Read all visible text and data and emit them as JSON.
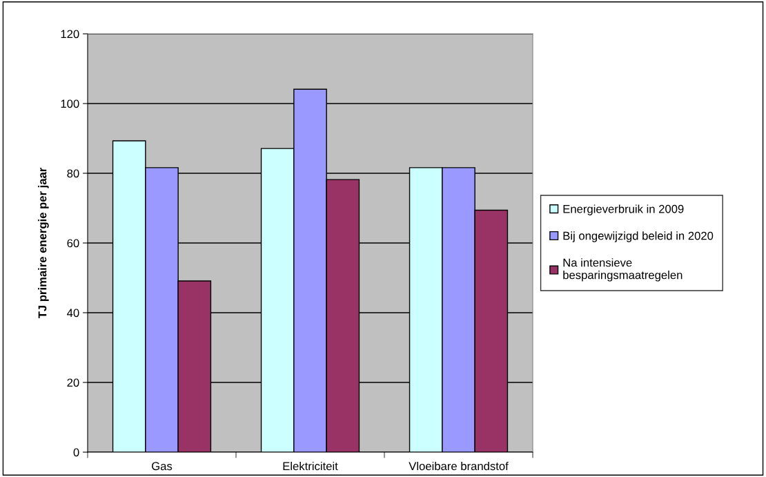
{
  "chart_data": {
    "type": "bar",
    "ylabel": "TJ primaire energie per jaar",
    "categories": [
      "Gas",
      "Elektriciteit",
      "Vloeibare brandstof"
    ],
    "series": [
      {
        "name": "Energieverbruik in 2009",
        "color": "#ccffff",
        "values": [
          89.3,
          87.1,
          81.6
        ]
      },
      {
        "name": "Bij ongewijzigd beleid in 2020",
        "color": "#9999ff",
        "values": [
          81.6,
          104.1,
          81.6
        ]
      },
      {
        "name": "Na intensieve\nbesparingsmaatregelen",
        "color": "#993366",
        "values": [
          49.1,
          78.2,
          69.4
        ]
      }
    ],
    "ylim": [
      0,
      120
    ],
    "yticks": [
      0,
      20,
      40,
      60,
      80,
      100,
      120
    ],
    "grid": "y",
    "legend": "right"
  }
}
